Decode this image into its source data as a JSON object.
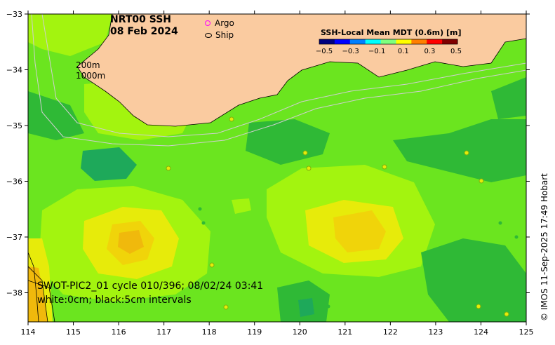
{
  "title": {
    "line1": "NRT00 SSH",
    "line2": "08 Feb 2024"
  },
  "legend": {
    "argo_label": "Argo",
    "ship_label": "Ship",
    "argo_color": "#ff00ff",
    "ship_color": "#000000"
  },
  "colorbar": {
    "title": "SSH-Local Mean MDT (0.6m) [m]",
    "ticks": [
      "−0.5",
      "−0.3",
      "−0.1",
      "0.1",
      "0.3",
      "0.5"
    ],
    "colors": [
      "#00007f",
      "#0000ff",
      "#007fff",
      "#00ffff",
      "#7fff7f",
      "#ffff00",
      "#ff7f00",
      "#ff0000",
      "#7f0000"
    ]
  },
  "depth_labels": {
    "a": "200m",
    "b": "1000m"
  },
  "swot": {
    "line1": "SWOT-PIC2_01 cycle 010/396; 08/02/24 03:41",
    "line2": "white:0cm; black:5cm intervals"
  },
  "credit": "© IMOS 11-Sep-2025 17:49 Hobart",
  "axes": {
    "x_ticks": [
      "114",
      "115",
      "116",
      "117",
      "118",
      "119",
      "120",
      "121",
      "122",
      "123",
      "124",
      "125"
    ],
    "y_ticks": [
      "−33",
      "−34",
      "−35",
      "−36",
      "−37",
      "−38"
    ]
  },
  "colors": {
    "land": "#facba0",
    "base": "#6be51f",
    "dark_green": "#2fb936",
    "lime": "#a3f40f",
    "yellow": "#e7eb0a",
    "orange": "#f0b90c"
  }
}
